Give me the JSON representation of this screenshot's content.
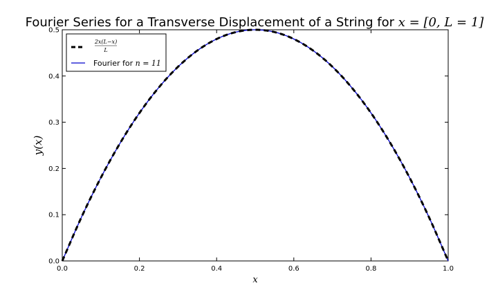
{
  "chart_data": {
    "type": "line",
    "title": "Fourier Series for a Transverse Displacement of a String for x = [0, L = 1]",
    "title_main": "Fourier Series for a Transverse Displacement of a String for ",
    "title_math": "x = [0, L = 1]",
    "xlabel": "x",
    "ylabel": "y(x)",
    "xlim": [
      0,
      1
    ],
    "ylim": [
      0,
      0.5
    ],
    "xticks": [
      "0.0",
      "0.2",
      "0.4",
      "0.6",
      "0.8",
      "1.0"
    ],
    "yticks": [
      "0.0",
      "0.1",
      "0.2",
      "0.3",
      "0.4",
      "0.5"
    ],
    "grid": false,
    "legend_position": "top-left",
    "series": [
      {
        "name": "2x(L−x)/L",
        "legend_num": "2x(L−x)",
        "legend_den": "L",
        "style": "dashed",
        "color": "#000000",
        "x": [
          0,
          0.05,
          0.1,
          0.15,
          0.2,
          0.25,
          0.3,
          0.35,
          0.4,
          0.45,
          0.5,
          0.55,
          0.6,
          0.65,
          0.7,
          0.75,
          0.8,
          0.85,
          0.9,
          0.95,
          1.0
        ],
        "y": [
          0,
          0.095,
          0.18,
          0.255,
          0.32,
          0.375,
          0.42,
          0.455,
          0.48,
          0.495,
          0.5,
          0.495,
          0.48,
          0.455,
          0.42,
          0.375,
          0.32,
          0.255,
          0.18,
          0.095,
          0
        ]
      },
      {
        "name": "Fourier for n = 11",
        "legend_text": "Fourier for ",
        "legend_math": "n = 11",
        "style": "solid",
        "color": "#0000cc",
        "x": [
          0,
          0.05,
          0.1,
          0.15,
          0.2,
          0.25,
          0.3,
          0.35,
          0.4,
          0.45,
          0.5,
          0.55,
          0.6,
          0.65,
          0.7,
          0.75,
          0.8,
          0.85,
          0.9,
          0.95,
          1.0
        ],
        "y": [
          0,
          0.095,
          0.18,
          0.255,
          0.32,
          0.375,
          0.42,
          0.455,
          0.48,
          0.495,
          0.5,
          0.495,
          0.48,
          0.455,
          0.42,
          0.375,
          0.32,
          0.255,
          0.18,
          0.095,
          0
        ]
      }
    ]
  }
}
